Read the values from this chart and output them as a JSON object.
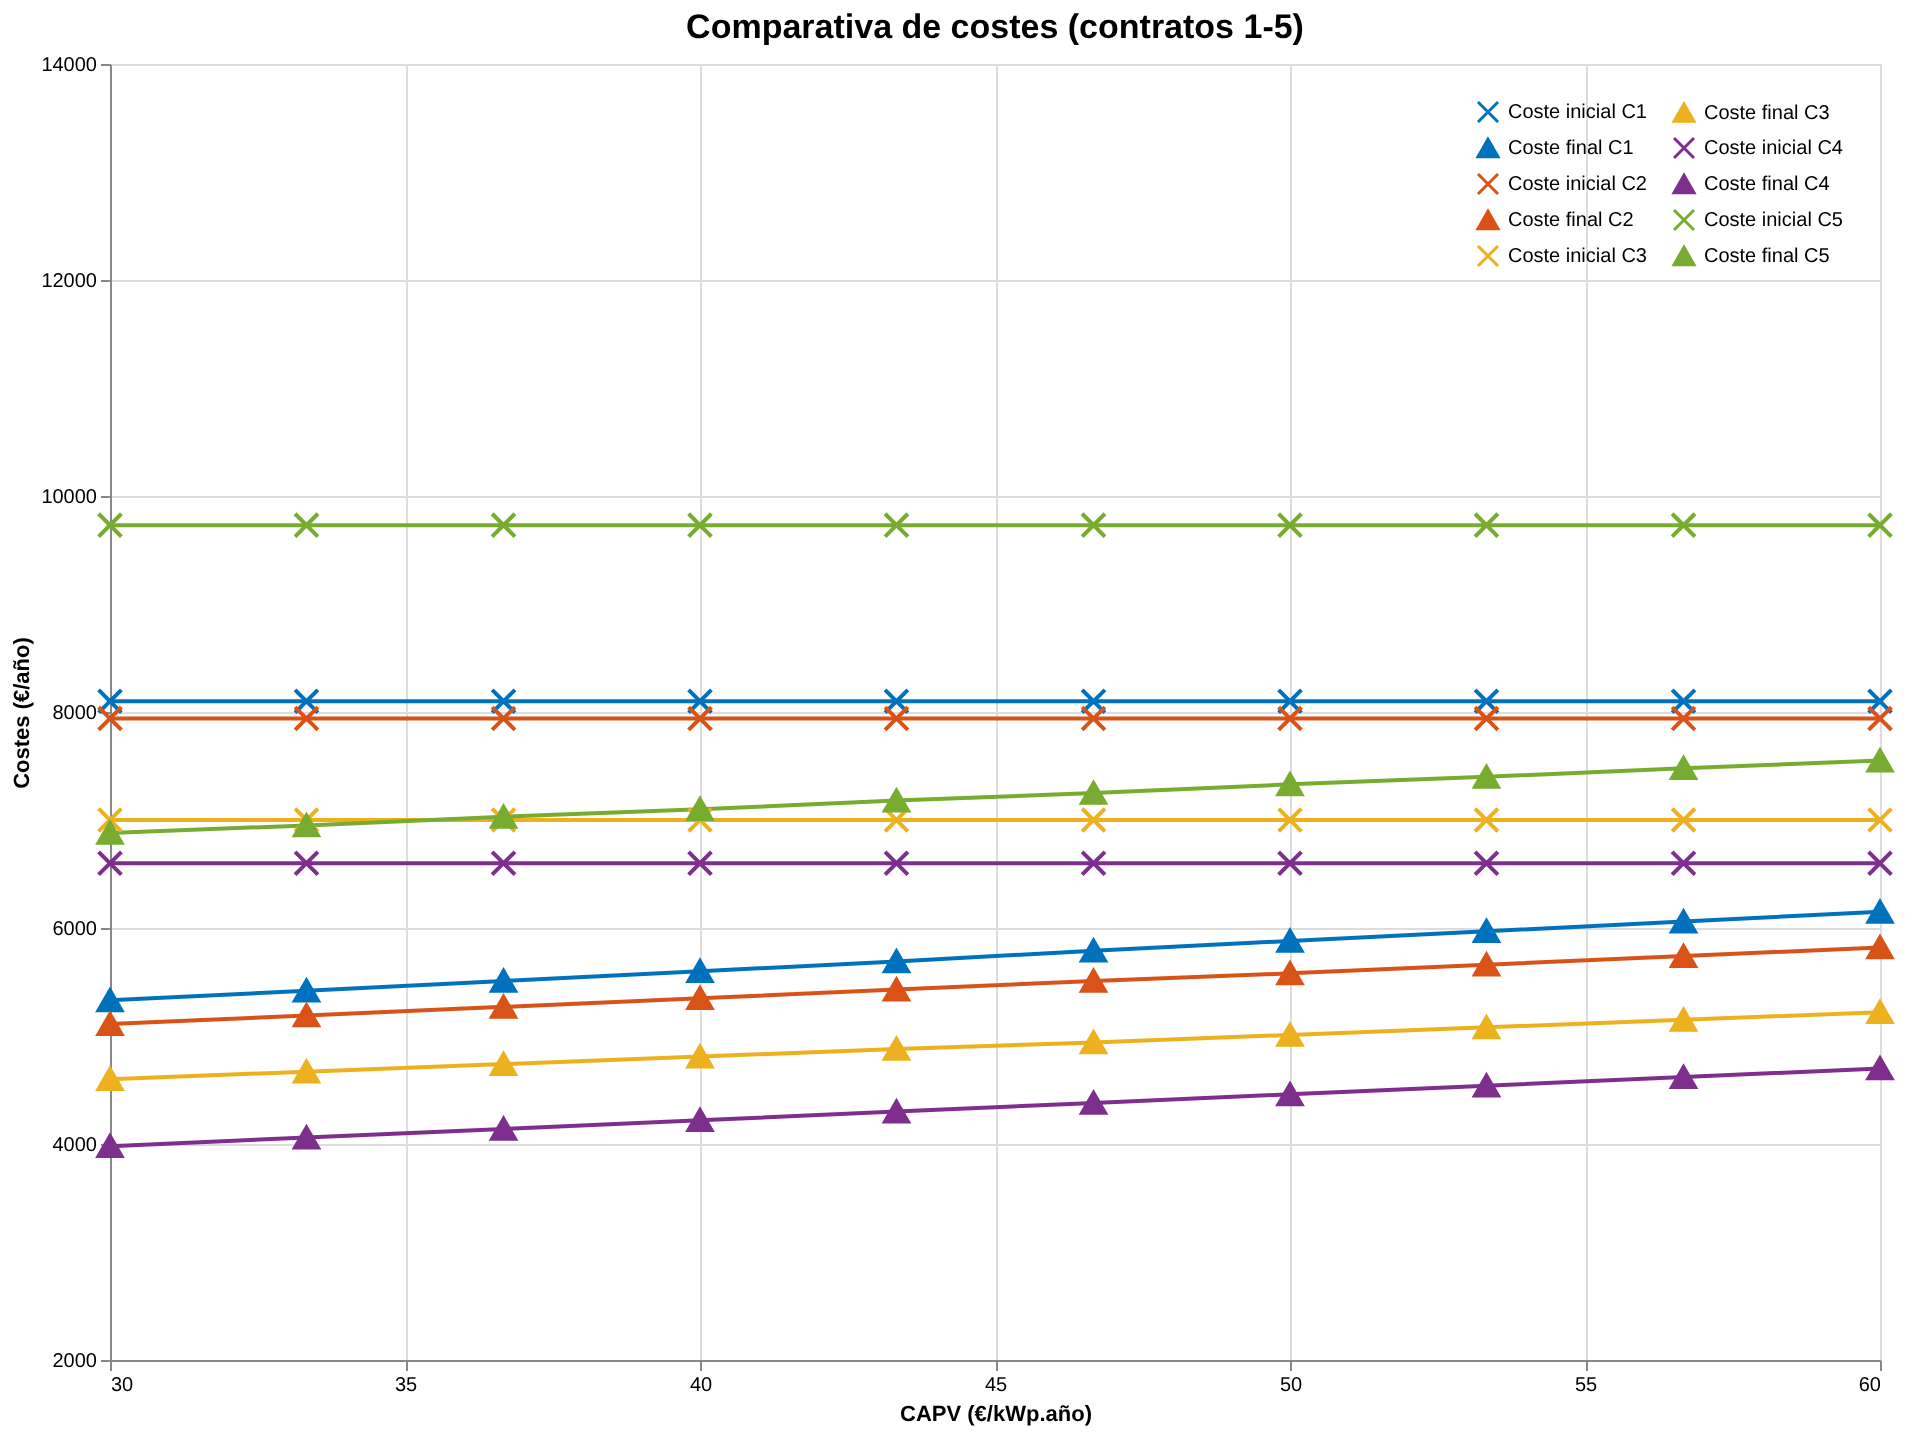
{
  "chart_data": {
    "type": "line",
    "title": "Comparativa de costes (contratos 1-5)",
    "xlabel": "CAPV (€/kWp.año)",
    "ylabel": "Costes (€/año)",
    "x": [
      30,
      33.33,
      36.67,
      40,
      43.33,
      46.67,
      50,
      53.33,
      56.67,
      60
    ],
    "xlim": [
      30,
      60
    ],
    "xticks": [
      30,
      35,
      40,
      45,
      50,
      55,
      60
    ],
    "ylim": [
      2000,
      14000
    ],
    "yticks": [
      2000,
      4000,
      6000,
      8000,
      10000,
      12000,
      14000
    ],
    "grid": true,
    "legend": "top right",
    "line_style": "solid",
    "series": [
      {
        "name": "Coste inicial C1",
        "color": "#0072bd",
        "marker": "cross",
        "values": [
          8100,
          8100,
          8100,
          8100,
          8100,
          8100,
          8100,
          8100,
          8100,
          8100
        ]
      },
      {
        "name": "Coste final C1",
        "color": "#0072bd",
        "marker": "triangle",
        "values": [
          5330,
          5420,
          5510,
          5600,
          5690,
          5790,
          5880,
          5970,
          6060,
          6150
        ]
      },
      {
        "name": "Coste inicial C2",
        "color": "#d95319",
        "marker": "cross",
        "values": [
          7940,
          7940,
          7940,
          7940,
          7940,
          7940,
          7940,
          7940,
          7940,
          7940
        ]
      },
      {
        "name": "Coste final C2",
        "color": "#d95319",
        "marker": "triangle",
        "values": [
          5110,
          5190,
          5270,
          5350,
          5430,
          5510,
          5580,
          5660,
          5740,
          5820
        ]
      },
      {
        "name": "Coste inicial C3",
        "color": "#edb120",
        "marker": "cross",
        "values": [
          7000,
          7000,
          7000,
          7000,
          7000,
          7000,
          7000,
          7000,
          7000,
          7000
        ]
      },
      {
        "name": "Coste final C3",
        "color": "#edb120",
        "marker": "triangle",
        "values": [
          4600,
          4670,
          4740,
          4810,
          4880,
          4940,
          5010,
          5080,
          5150,
          5220
        ]
      },
      {
        "name": "Coste inicial C4",
        "color": "#7e2f8e",
        "marker": "cross",
        "values": [
          6600,
          6600,
          6600,
          6600,
          6600,
          6600,
          6600,
          6600,
          6600,
          6600
        ]
      },
      {
        "name": "Coste final C4",
        "color": "#7e2f8e",
        "marker": "triangle",
        "values": [
          3980,
          4060,
          4140,
          4220,
          4300,
          4380,
          4460,
          4540,
          4620,
          4700
        ]
      },
      {
        "name": "Coste inicial C5",
        "color": "#77ac30",
        "marker": "cross",
        "values": [
          9730,
          9730,
          9730,
          9730,
          9730,
          9730,
          9730,
          9730,
          9730,
          9730
        ]
      },
      {
        "name": "Coste final C5",
        "color": "#77ac30",
        "marker": "triangle",
        "values": [
          6880,
          6950,
          7030,
          7100,
          7180,
          7250,
          7330,
          7400,
          7480,
          7550
        ]
      }
    ]
  }
}
